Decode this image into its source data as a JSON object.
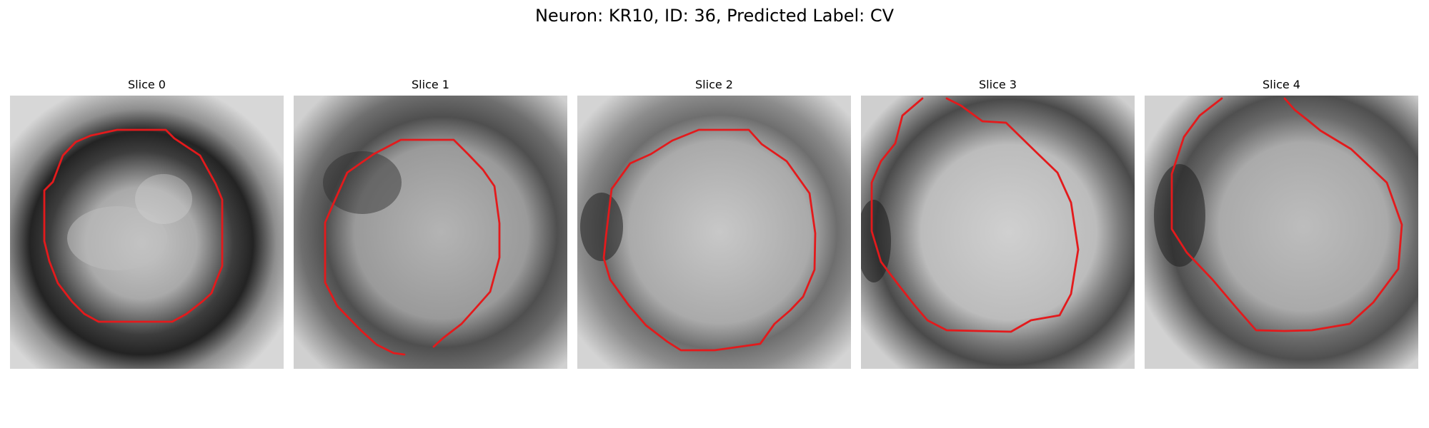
{
  "figure": {
    "title": "Neuron: KR10, ID: 36, Predicted Label: CV"
  },
  "panels": [
    {
      "title": "Slice 0",
      "image_content": "grayscale microscopy crop with red contour overlay",
      "contour_color": "#e31a1c"
    },
    {
      "title": "Slice 1",
      "image_content": "grayscale microscopy crop with red contour overlay",
      "contour_color": "#e31a1c"
    },
    {
      "title": "Slice 2",
      "image_content": "grayscale microscopy crop with red contour overlay",
      "contour_color": "#e31a1c"
    },
    {
      "title": "Slice 3",
      "image_content": "grayscale microscopy crop with red contour overlay",
      "contour_color": "#e31a1c"
    },
    {
      "title": "Slice 4",
      "image_content": "grayscale microscopy crop with red contour overlay",
      "contour_color": "#e31a1c"
    }
  ]
}
